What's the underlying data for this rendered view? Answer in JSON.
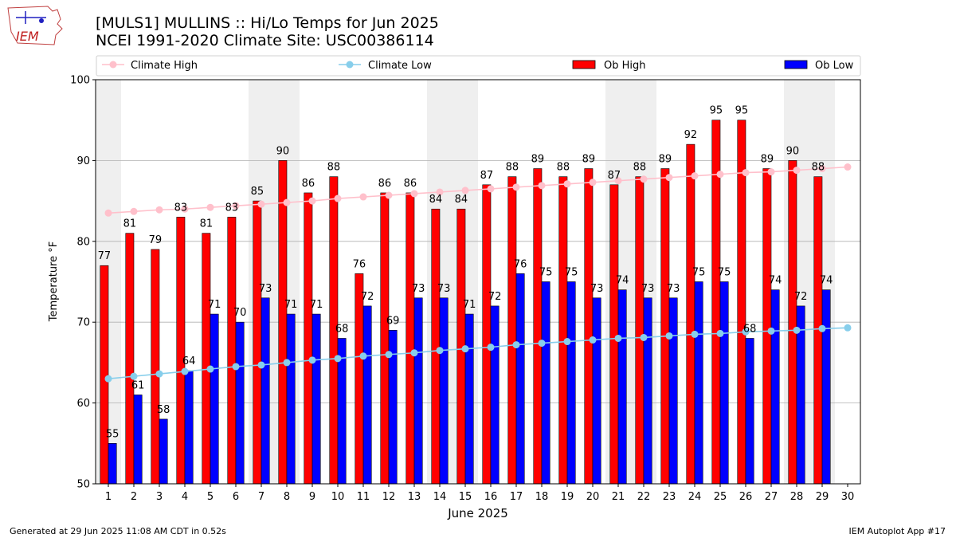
{
  "header": {
    "logo_text": "IEM",
    "title_line1": "[MULS1] MULLINS :: Hi/Lo Temps for Jun 2025",
    "title_line2": "NCEI 1991-2020 Climate Site: USC00386114"
  },
  "footer": {
    "generated": "Generated at 29 Jun 2025 11:08 AM CDT in 0.52s",
    "app": "IEM Autoplot App #17"
  },
  "colors": {
    "ob_high": "#ff0000",
    "ob_low": "#0000ff",
    "climate_high": "#ffc0cb",
    "climate_low": "#87ceeb",
    "weekend_band": "#efefef",
    "grid": "#b0b0b0"
  },
  "chart_data": {
    "type": "bar",
    "xlabel": "June 2025",
    "ylabel": "Temperature °F",
    "ylim": [
      50,
      100
    ],
    "xlim": [
      0.5,
      30.5
    ],
    "yticks": [
      50,
      60,
      70,
      80,
      90,
      100
    ],
    "xticks": [
      1,
      2,
      3,
      4,
      5,
      6,
      7,
      8,
      9,
      10,
      11,
      12,
      13,
      14,
      15,
      16,
      17,
      18,
      19,
      20,
      21,
      22,
      23,
      24,
      25,
      26,
      27,
      28,
      29,
      30
    ],
    "grid": "horizontal",
    "legend_placement": "top",
    "weekend_days": [
      1,
      7,
      8,
      14,
      15,
      21,
      22,
      28,
      29
    ],
    "days": [
      1,
      2,
      3,
      4,
      5,
      6,
      7,
      8,
      9,
      10,
      11,
      12,
      13,
      14,
      15,
      16,
      17,
      18,
      19,
      20,
      21,
      22,
      23,
      24,
      25,
      26,
      27,
      28,
      29
    ],
    "series": [
      {
        "name": "Ob High",
        "kind": "bar",
        "values": [
          77,
          81,
          79,
          83,
          81,
          83,
          85,
          90,
          86,
          88,
          76,
          86,
          86,
          84,
          84,
          87,
          88,
          89,
          88,
          89,
          87,
          88,
          89,
          92,
          95,
          95,
          89,
          90,
          88
        ]
      },
      {
        "name": "Ob Low",
        "kind": "bar",
        "values": [
          55,
          61,
          58,
          64,
          71,
          70,
          73,
          71,
          71,
          68,
          72,
          69,
          73,
          73,
          71,
          72,
          76,
          75,
          75,
          73,
          74,
          73,
          73,
          75,
          75,
          68,
          74,
          72,
          74
        ]
      },
      {
        "name": "Climate High",
        "kind": "line",
        "x": [
          1,
          2,
          3,
          4,
          5,
          6,
          7,
          8,
          9,
          10,
          11,
          12,
          13,
          14,
          15,
          16,
          17,
          18,
          19,
          20,
          21,
          22,
          23,
          24,
          25,
          26,
          27,
          28,
          29,
          30
        ],
        "values": [
          83.5,
          83.7,
          83.9,
          84.0,
          84.2,
          84.4,
          84.6,
          84.8,
          85.0,
          85.3,
          85.5,
          85.7,
          85.9,
          86.1,
          86.3,
          86.5,
          86.7,
          86.9,
          87.1,
          87.3,
          87.5,
          87.7,
          87.9,
          88.1,
          88.3,
          88.5,
          88.6,
          88.8,
          89.0,
          89.2
        ]
      },
      {
        "name": "Climate Low",
        "kind": "line",
        "x": [
          1,
          2,
          3,
          4,
          5,
          6,
          7,
          8,
          9,
          10,
          11,
          12,
          13,
          14,
          15,
          16,
          17,
          18,
          19,
          20,
          21,
          22,
          23,
          24,
          25,
          26,
          27,
          28,
          29,
          30
        ],
        "values": [
          63.0,
          63.3,
          63.6,
          63.9,
          64.2,
          64.5,
          64.7,
          65.0,
          65.3,
          65.5,
          65.8,
          66.0,
          66.2,
          66.5,
          66.7,
          66.9,
          67.2,
          67.4,
          67.6,
          67.8,
          68.0,
          68.1,
          68.3,
          68.5,
          68.6,
          68.8,
          68.9,
          69.0,
          69.2,
          69.3
        ]
      }
    ],
    "legend": [
      "Climate High",
      "Climate Low",
      "Ob High",
      "Ob Low"
    ]
  }
}
